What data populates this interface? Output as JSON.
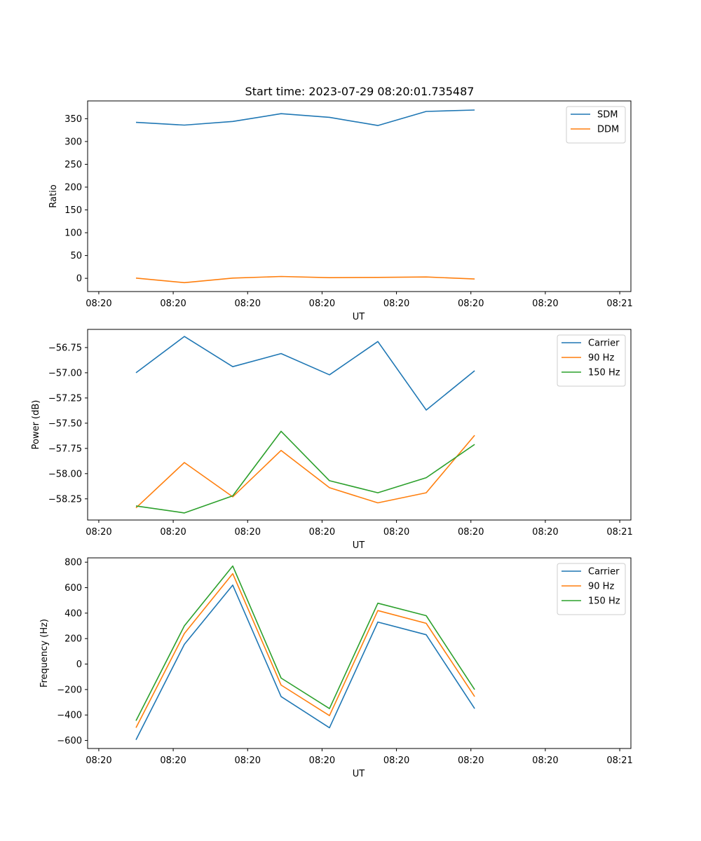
{
  "figure": {
    "title": "Start time: 2023-07-29 08:20:01.735487"
  },
  "chart_data": [
    {
      "type": "line",
      "title": "Start time: 2023-07-29 08:20:01.735487",
      "xlabel": "UT",
      "ylabel": "Ratio",
      "x_tick_labels": [
        "08:20",
        "08:20",
        "08:20",
        "08:20",
        "08:20",
        "08:20",
        "08:20",
        "08:21"
      ],
      "x_ticks": [
        0,
        1,
        2,
        3,
        4,
        5,
        6,
        7
      ],
      "xlim": [
        -0.15,
        7.15
      ],
      "x": [
        0.5,
        1.15,
        1.8,
        2.45,
        3.1,
        3.75,
        4.4,
        5.05
      ],
      "ylim": [
        -29,
        389
      ],
      "y_ticks": [
        0,
        50,
        100,
        150,
        200,
        250,
        300,
        350
      ],
      "y_tick_labels": [
        "0",
        "50",
        "100",
        "150",
        "200",
        "250",
        "300",
        "350"
      ],
      "legend_loc": "upper right",
      "series": [
        {
          "name": "SDM",
          "color": "#1f77b4",
          "values": [
            342,
            336,
            344,
            361,
            353,
            335,
            366,
            369
          ]
        },
        {
          "name": "DDM",
          "color": "#ff7f0e",
          "values": [
            0.5,
            -9.5,
            0.5,
            4,
            1.5,
            2,
            3,
            -1.5
          ]
        }
      ]
    },
    {
      "type": "line",
      "title": "",
      "xlabel": "UT",
      "ylabel": "Power (dB)",
      "x_tick_labels": [
        "08:20",
        "08:20",
        "08:20",
        "08:20",
        "08:20",
        "08:20",
        "08:20",
        "08:21"
      ],
      "x_ticks": [
        0,
        1,
        2,
        3,
        4,
        5,
        6,
        7
      ],
      "xlim": [
        -0.15,
        7.15
      ],
      "x": [
        0.5,
        1.15,
        1.8,
        2.45,
        3.1,
        3.75,
        4.4,
        5.05
      ],
      "ylim": [
        -58.46,
        -56.57
      ],
      "y_ticks": [
        -58.25,
        -58.0,
        -57.75,
        -57.5,
        -57.25,
        -57.0,
        -56.75
      ],
      "y_tick_labels": [
        "−58.25",
        "−58.00",
        "−57.75",
        "−57.50",
        "−57.25",
        "−57.00",
        "−56.75"
      ],
      "legend_loc": "upper right",
      "series": [
        {
          "name": "Carrier",
          "color": "#1f77b4",
          "values": [
            -57.0,
            -56.64,
            -56.94,
            -56.81,
            -57.02,
            -56.69,
            -57.37,
            -56.98
          ]
        },
        {
          "name": "90 Hz",
          "color": "#ff7f0e",
          "values": [
            -58.34,
            -57.89,
            -58.23,
            -57.77,
            -58.14,
            -58.29,
            -58.19,
            -57.62
          ]
        },
        {
          "name": "150 Hz",
          "color": "#2ca02c",
          "values": [
            -58.32,
            -58.39,
            -58.22,
            -57.58,
            -58.07,
            -58.19,
            -58.04,
            -57.71
          ]
        }
      ]
    },
    {
      "type": "line",
      "title": "",
      "xlabel": "UT",
      "ylabel": "Frequency (Hz)",
      "x_tick_labels": [
        "08:20",
        "08:20",
        "08:20",
        "08:20",
        "08:20",
        "08:20",
        "08:20",
        "08:21"
      ],
      "x_ticks": [
        0,
        1,
        2,
        3,
        4,
        5,
        6,
        7
      ],
      "xlim": [
        -0.15,
        7.15
      ],
      "x": [
        0.5,
        1.15,
        1.8,
        2.45,
        3.1,
        3.75,
        4.4,
        5.05
      ],
      "ylim": [
        -663,
        834
      ],
      "y_ticks": [
        -600,
        -400,
        -200,
        0,
        200,
        400,
        600,
        800
      ],
      "y_tick_labels": [
        "−600",
        "−400",
        "−200",
        "0",
        "200",
        "400",
        "600",
        "800"
      ],
      "legend_loc": "upper right",
      "series": [
        {
          "name": "Carrier",
          "color": "#1f77b4",
          "values": [
            -595,
            155,
            620,
            -255,
            -500,
            330,
            230,
            -350
          ]
        },
        {
          "name": "90 Hz",
          "color": "#ff7f0e",
          "values": [
            -500,
            240,
            710,
            -165,
            -405,
            420,
            320,
            -255
          ]
        },
        {
          "name": "150 Hz",
          "color": "#2ca02c",
          "values": [
            -445,
            300,
            770,
            -110,
            -350,
            478,
            380,
            -200
          ]
        }
      ]
    }
  ]
}
